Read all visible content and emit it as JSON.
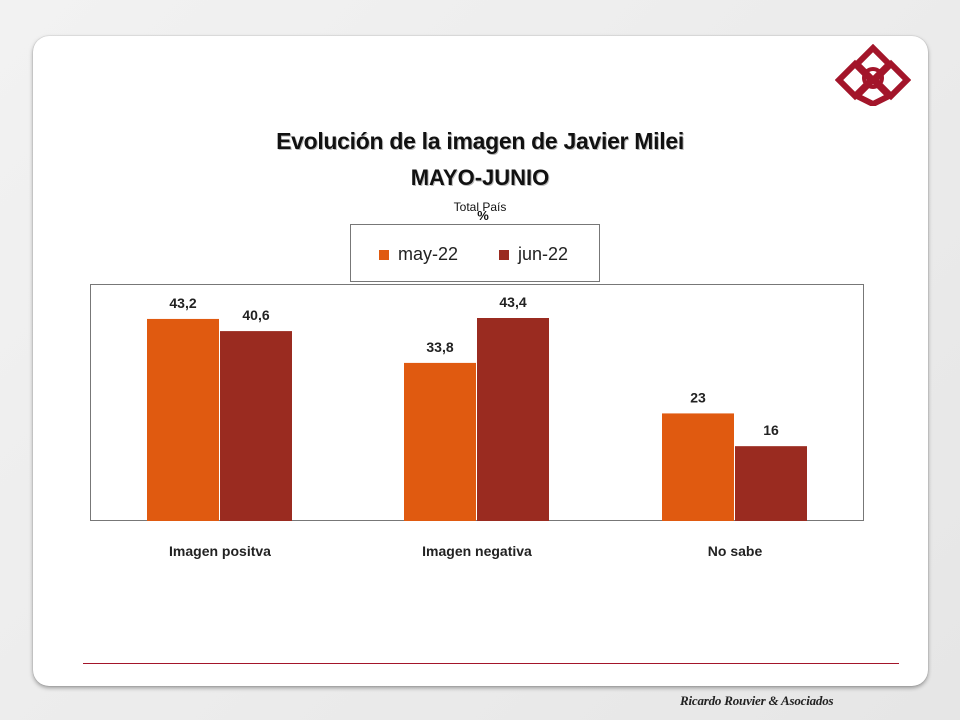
{
  "header": {
    "title": "Evolución de la imagen de Javier Milei",
    "subtitle": "MAYO-JUNIO",
    "caption_scope": "Total País",
    "caption_unit": "%"
  },
  "footer": {
    "brand": "Ricardo Rouvier & Asociados"
  },
  "logo": {
    "icon": "diamond-logo-icon",
    "color": "#a3152a"
  },
  "chart_data": {
    "type": "bar",
    "title": "Evolución de la imagen de Javier Milei",
    "subtitle": "MAYO-JUNIO",
    "categories": [
      "Imagen positva",
      "Imagen negativa",
      "No sabe"
    ],
    "series": [
      {
        "name": "may-22",
        "color": "#e05a10",
        "values": [
          43.2,
          33.8,
          23
        ],
        "labels": [
          "43,2",
          "33,8",
          "23"
        ]
      },
      {
        "name": "jun-22",
        "color": "#9a2b20",
        "values": [
          40.6,
          43.4,
          16
        ],
        "labels": [
          "40,6",
          "43,4",
          "16"
        ]
      }
    ],
    "xlabel": "",
    "ylabel": "%",
    "ylim": [
      0,
      50
    ],
    "grid": false,
    "legend_position": "top-center"
  }
}
